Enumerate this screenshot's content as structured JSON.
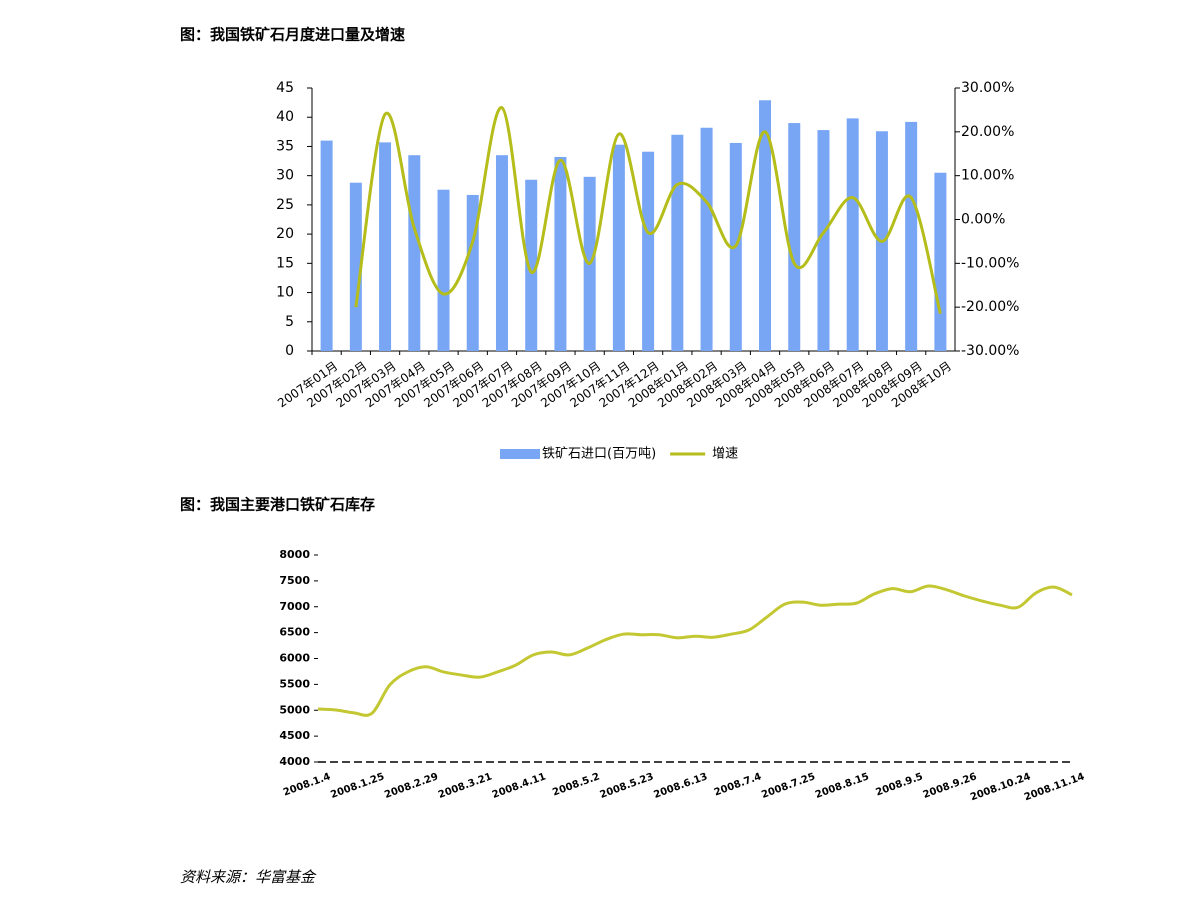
{
  "chart_data": [
    {
      "type": "bar-line",
      "title": "图：我国铁矿石月度进口量及增速",
      "categories": [
        "2007年01月",
        "2007年02月",
        "2007年03月",
        "2007年04月",
        "2007年05月",
        "2007年06月",
        "2007年07月",
        "2007年08月",
        "2007年09月",
        "2007年10月",
        "2007年11月",
        "2007年12月",
        "2008年01月",
        "2008年02月",
        "2008年03月",
        "2008年04月",
        "2008年05月",
        "2008年06月",
        "2008年07月",
        "2008年08月",
        "2008年09月",
        "2008年10月"
      ],
      "series": [
        {
          "name": "铁矿石进口(百万吨)",
          "type": "bar",
          "color": "#78a6f5",
          "values": [
            36,
            28.8,
            35.7,
            33.5,
            27.6,
            26.7,
            33.5,
            29.3,
            33.2,
            29.8,
            35.3,
            34.1,
            37,
            38.2,
            35.6,
            42.9,
            39,
            37.8,
            39.8,
            37.6,
            39.2,
            30.5
          ]
        },
        {
          "name": "增速",
          "type": "line",
          "axis": "y2",
          "color": "#b5bd1a",
          "values": [
            null,
            -20,
            24,
            -2,
            -17,
            -5,
            25.5,
            -12,
            13.5,
            -10,
            19.5,
            -3,
            8,
            4,
            -6,
            20,
            -10,
            -3,
            5,
            -5,
            5,
            -21.5
          ]
        }
      ],
      "ylim": [
        0,
        45
      ],
      "yticks": [
        0,
        5,
        10,
        15,
        20,
        25,
        30,
        35,
        40,
        45
      ],
      "y2lim": [
        -30,
        30
      ],
      "y2ticks": [
        {
          "value": -30,
          "label": "-30.00%"
        },
        {
          "value": -20,
          "label": "-20.00%"
        },
        {
          "value": -10,
          "label": "-10.00%"
        },
        {
          "value": 0,
          "label": "0.00%"
        },
        {
          "value": 10,
          "label": "10.00%"
        },
        {
          "value": 20,
          "label": "20.00%"
        },
        {
          "value": 30,
          "label": "30.00%"
        }
      ],
      "legend": "bottom"
    },
    {
      "type": "line",
      "title": "图：我国主要港口铁矿石库存",
      "categories": [
        "2008.1.4",
        null,
        null,
        "2008.1.25",
        null,
        null,
        "2008.2.29",
        null,
        null,
        "2008.3.21",
        null,
        null,
        "2008.4.11",
        null,
        null,
        "2008.5.2",
        null,
        null,
        "2008.5.23",
        null,
        null,
        "2008.6.13",
        null,
        null,
        "2008.7.4",
        null,
        null,
        "2008.7.25",
        null,
        null,
        "2008.8.15",
        null,
        null,
        "2008.9.5",
        null,
        null,
        "2008.9.26",
        null,
        null,
        "2008.10.24",
        null,
        null,
        "2008.11.14"
      ],
      "series": [
        {
          "color": "#c3c832",
          "values": [
            5025,
            5005,
            4950,
            4940,
            5490,
            5740,
            5840,
            5740,
            5680,
            5640,
            5740,
            5870,
            6070,
            6125,
            6070,
            6200,
            6360,
            6470,
            6460,
            6460,
            6400,
            6430,
            6410,
            6470,
            6550,
            6800,
            7050,
            7090,
            7030,
            7050,
            7070,
            7250,
            7350,
            7290,
            7400,
            7330,
            7210,
            7110,
            7030,
            6990,
            7270,
            7380,
            7230
          ]
        }
      ],
      "ylim": [
        4000,
        8000
      ],
      "yticks": [
        4000,
        4500,
        5000,
        5500,
        6000,
        6500,
        7000,
        7500,
        8000
      ]
    }
  ],
  "source": "资料来源：华富基金"
}
